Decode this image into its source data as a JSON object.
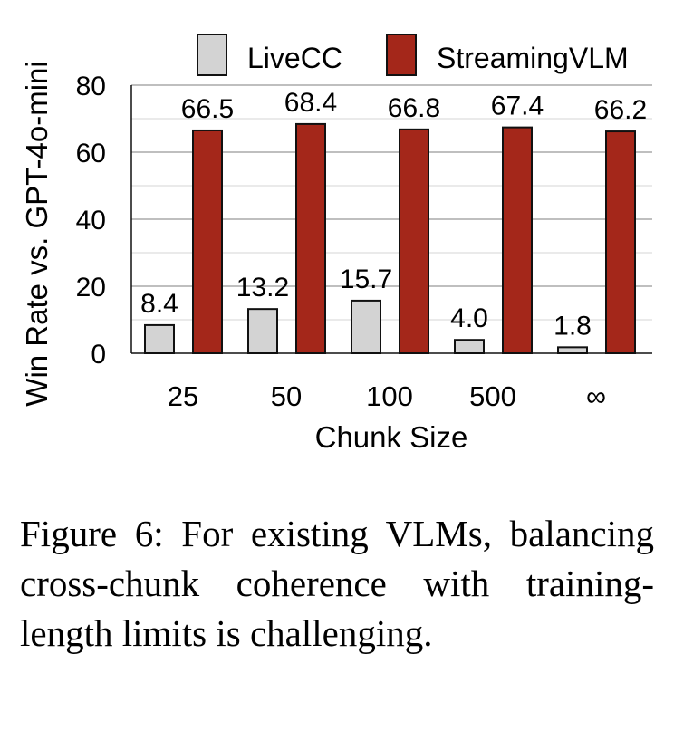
{
  "chart_data": {
    "type": "bar",
    "categories": [
      "25",
      "50",
      "100",
      "500",
      "∞"
    ],
    "series": [
      {
        "name": "LiveCC",
        "values": [
          8.4,
          13.2,
          15.7,
          4.0,
          1.8
        ],
        "color": "#d3d3d3"
      },
      {
        "name": "StreamingVLM",
        "values": [
          66.5,
          68.4,
          66.8,
          67.4,
          66.2
        ],
        "color": "#a4271a"
      }
    ],
    "data_labels": {
      "LiveCC": [
        "8.4",
        "13.2",
        "15.7",
        "4.0",
        "1.8"
      ],
      "StreamingVLM": [
        "66.5",
        "68.4",
        "66.8",
        "67.4",
        "66.2"
      ]
    },
    "xlabel": "Chunk Size",
    "ylabel": "Win Rate vs. GPT-4o-mini",
    "ylim": [
      0,
      80
    ],
    "yticks": [
      "0",
      "20",
      "40",
      "60",
      "80"
    ],
    "grid": true,
    "legend_position": "top"
  },
  "caption": "Figure 6: For existing VLMs, balancing cross-chunk coherence with training-length limits is challenging."
}
